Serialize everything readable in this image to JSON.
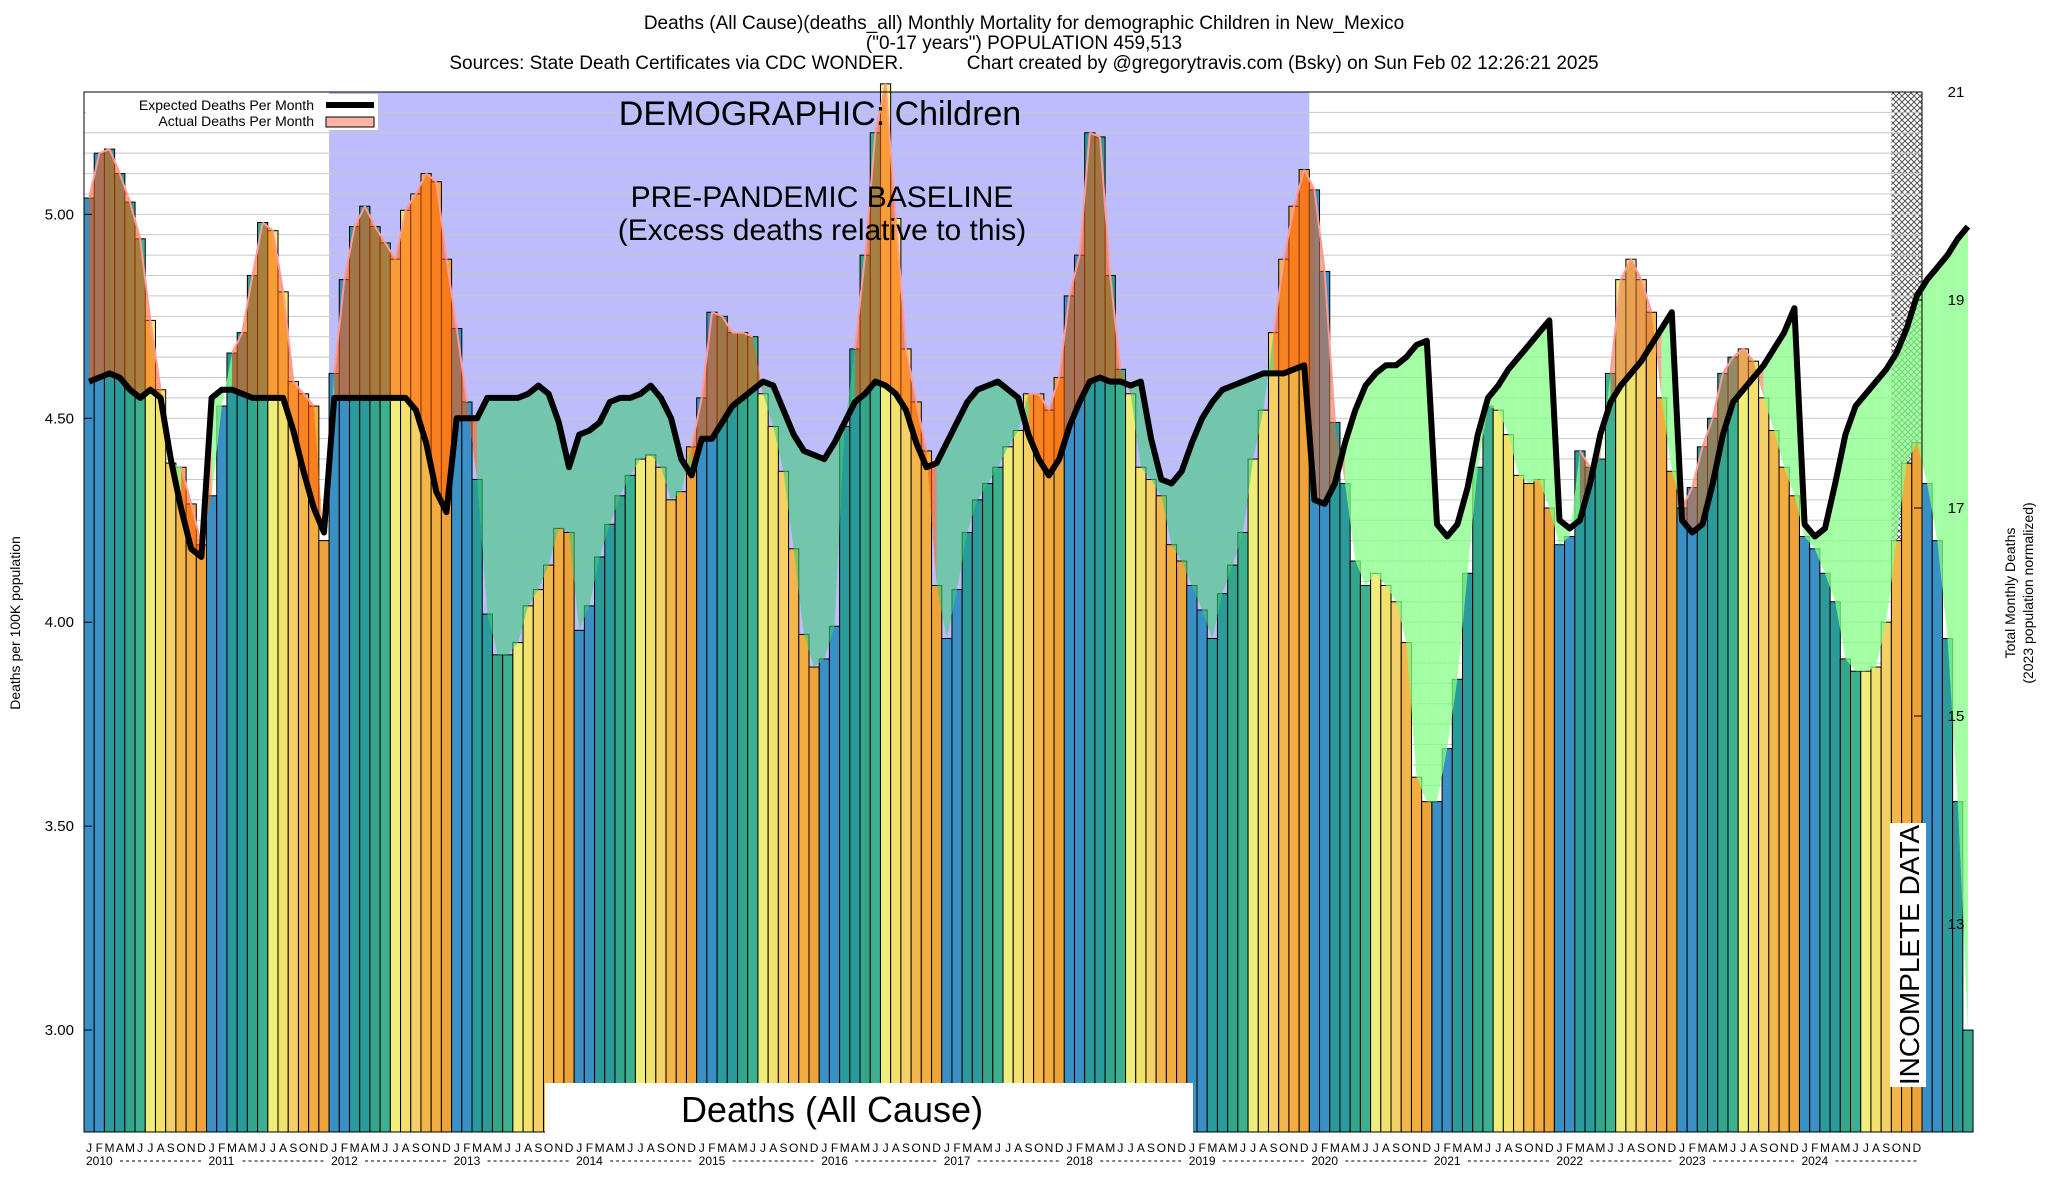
{
  "header": {
    "line1": "Deaths (All Cause)(deaths_all) Monthly Mortality for demographic Children in New_Mexico",
    "line2": "(\"0-17 years\") POPULATION 459,513",
    "line3_left": "Sources: State Death Certificates via CDC WONDER.",
    "line3_right": "Chart created by @gregorytravis.com (Bsky) on Sun Feb 02 12:26:21 2025"
  },
  "chart_data": {
    "type": "bar",
    "title": "Deaths (All Cause)(deaths_all) Monthly Mortality for demographic Children in New_Mexico",
    "ylabel": "Deaths per 100K population",
    "y2label_line1": "Total Monthly Deaths",
    "y2label_line2": "(2023 population normalized)",
    "ylim": [
      2.75,
      5.3
    ],
    "y2lim": [
      11.0,
      21.0
    ],
    "yticks": [
      "3.00",
      "3.50",
      "4.00",
      "4.50",
      "5.00"
    ],
    "y2ticks": [
      "13",
      "15",
      "17",
      "19",
      "21"
    ],
    "month_letters": [
      "J",
      "F",
      "M",
      "A",
      "M",
      "J",
      "J",
      "A",
      "S",
      "O",
      "N",
      "D"
    ],
    "years": [
      "2010",
      "2011",
      "2012",
      "2013",
      "2014",
      "2015",
      "2016",
      "2017",
      "2018",
      "2019",
      "2020",
      "2021",
      "2022",
      "2023",
      "2024"
    ],
    "legend": {
      "expected": "Expected Deaths Per Month",
      "actual": "Actual Deaths Per Month",
      "placement": "top-left"
    },
    "annotations": {
      "demographic": "DEMOGRAPHIC: Children",
      "baseline1": "PRE-PANDEMIC BASELINE",
      "baseline2": "(Excess deaths relative to this)",
      "bottom_label": "Deaths (All Cause)",
      "incomplete": "INCOMPLETE DATA"
    },
    "baseline_period": "2012-2019",
    "series": [
      {
        "name": "Actual Deaths Per Month",
        "unit": "deaths per 100K",
        "values": [
          5.04,
          5.15,
          5.16,
          5.1,
          5.03,
          4.94,
          4.74,
          4.57,
          4.39,
          4.38,
          4.29,
          4.19,
          4.31,
          4.53,
          4.66,
          4.71,
          4.85,
          4.98,
          4.96,
          4.81,
          4.59,
          4.56,
          4.53,
          4.2,
          4.61,
          4.84,
          4.97,
          5.02,
          4.97,
          4.93,
          4.89,
          5.01,
          5.05,
          5.1,
          5.08,
          4.89,
          4.72,
          4.54,
          4.35,
          4.02,
          3.92,
          3.92,
          3.95,
          4.04,
          4.08,
          4.14,
          4.23,
          4.22,
          3.98,
          4.04,
          4.16,
          4.24,
          4.31,
          4.36,
          4.4,
          4.41,
          4.38,
          4.3,
          4.32,
          4.43,
          4.55,
          4.76,
          4.75,
          4.71,
          4.71,
          4.7,
          4.56,
          4.48,
          4.37,
          4.18,
          3.97,
          3.89,
          3.91,
          3.99,
          4.48,
          4.67,
          4.9,
          5.2,
          5.32,
          4.99,
          4.67,
          4.54,
          4.42,
          4.09,
          3.96,
          4.08,
          4.22,
          4.3,
          4.34,
          4.38,
          4.43,
          4.47,
          4.56,
          4.56,
          4.52,
          4.6,
          4.8,
          4.9,
          5.2,
          5.19,
          4.85,
          4.62,
          4.56,
          4.38,
          4.35,
          4.31,
          4.19,
          4.15,
          4.09,
          4.03,
          3.96,
          4.07,
          4.14,
          4.22,
          4.4,
          4.52,
          4.71,
          4.89,
          5.02,
          5.11,
          5.06,
          4.86,
          4.49,
          4.34,
          4.15,
          4.09,
          4.12,
          4.09,
          4.05,
          3.95,
          3.62,
          3.56,
          3.56,
          3.69,
          3.86,
          4.12,
          4.38,
          4.53,
          4.52,
          4.46,
          4.36,
          4.34,
          4.35,
          4.28,
          4.19,
          4.21,
          4.42,
          4.38,
          4.4,
          4.61,
          4.84,
          4.89,
          4.84,
          4.76,
          4.55,
          4.37,
          4.28,
          4.33,
          4.43,
          4.5,
          4.61,
          4.65,
          4.67,
          4.64,
          4.55,
          4.47,
          4.38,
          4.31,
          4.21,
          4.18,
          4.12,
          4.05,
          3.91,
          3.88,
          3.88,
          3.89,
          4.0,
          4.2,
          4.39,
          4.44,
          4.34,
          4.2,
          3.96,
          3.56,
          3.0
        ]
      },
      {
        "name": "Expected Deaths Per Month",
        "unit": "deaths per 100K",
        "values": [
          4.59,
          4.6,
          4.61,
          4.6,
          4.57,
          4.55,
          4.57,
          4.55,
          4.4,
          4.28,
          4.18,
          4.16,
          4.55,
          4.57,
          4.57,
          4.56,
          4.55,
          4.55,
          4.55,
          4.55,
          4.47,
          4.37,
          4.28,
          4.22,
          4.55,
          4.55,
          4.55,
          4.55,
          4.55,
          4.55,
          4.55,
          4.55,
          4.52,
          4.44,
          4.32,
          4.27,
          4.5,
          4.5,
          4.5,
          4.55,
          4.55,
          4.55,
          4.55,
          4.56,
          4.58,
          4.56,
          4.49,
          4.38,
          4.46,
          4.47,
          4.49,
          4.54,
          4.55,
          4.55,
          4.56,
          4.58,
          4.55,
          4.5,
          4.4,
          4.36,
          4.45,
          4.45,
          4.49,
          4.53,
          4.55,
          4.57,
          4.59,
          4.58,
          4.52,
          4.46,
          4.42,
          4.41,
          4.4,
          4.44,
          4.49,
          4.54,
          4.56,
          4.59,
          4.58,
          4.56,
          4.52,
          4.44,
          4.38,
          4.39,
          4.44,
          4.49,
          4.54,
          4.57,
          4.58,
          4.59,
          4.57,
          4.55,
          4.46,
          4.4,
          4.36,
          4.4,
          4.48,
          4.54,
          4.59,
          4.6,
          4.59,
          4.59,
          4.58,
          4.59,
          4.45,
          4.35,
          4.34,
          4.37,
          4.44,
          4.5,
          4.54,
          4.57,
          4.58,
          4.59,
          4.6,
          4.61,
          4.61,
          4.61,
          4.62,
          4.63,
          4.3,
          4.29,
          4.34,
          4.44,
          4.52,
          4.58,
          4.61,
          4.63,
          4.63,
          4.65,
          4.68,
          4.69,
          4.24,
          4.21,
          4.24,
          4.33,
          4.46,
          4.55,
          4.58,
          4.62,
          4.65,
          4.68,
          4.71,
          4.74,
          4.25,
          4.23,
          4.25,
          4.34,
          4.46,
          4.54,
          4.58,
          4.61,
          4.64,
          4.68,
          4.72,
          4.76,
          4.25,
          4.22,
          4.24,
          4.34,
          4.46,
          4.54,
          4.57,
          4.6,
          4.63,
          4.67,
          4.71,
          4.77,
          4.24,
          4.21,
          4.23,
          4.34,
          4.46,
          4.53,
          4.56,
          4.59,
          4.62,
          4.66,
          4.72,
          4.8,
          4.84,
          4.87,
          4.9,
          4.94,
          4.97
        ]
      }
    ]
  }
}
